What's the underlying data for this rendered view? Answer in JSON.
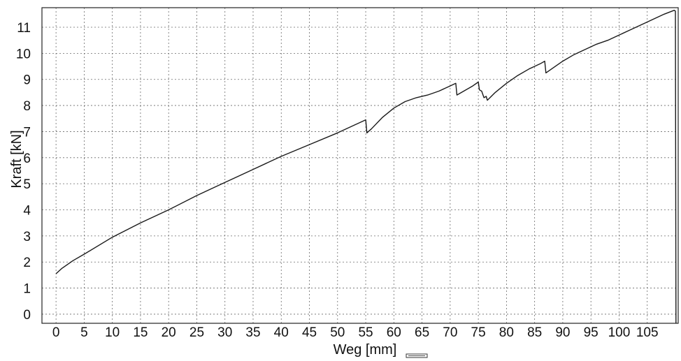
{
  "chart_data": {
    "type": "line",
    "title": "",
    "xlabel": "Weg [mm]",
    "ylabel": "Kraft [kN]",
    "xlim": [
      -2.5,
      110.5
    ],
    "ylim": [
      -0.35,
      11.75
    ],
    "x_ticks": [
      0,
      5,
      10,
      15,
      20,
      25,
      30,
      35,
      40,
      45,
      50,
      55,
      60,
      65,
      70,
      75,
      80,
      85,
      90,
      95,
      100,
      105
    ],
    "y_ticks": [
      0,
      1,
      2,
      3,
      4,
      5,
      6,
      7,
      8,
      9,
      10,
      11
    ],
    "grid": true,
    "legend": "none",
    "series": [
      {
        "x": [
          0,
          1,
          3,
          5,
          10,
          15,
          20,
          25,
          30,
          35,
          40,
          45,
          50,
          55,
          55.2,
          56,
          58,
          60,
          62,
          64,
          66,
          68,
          70,
          71,
          71.2,
          72,
          74,
          75,
          75.2,
          75.6,
          76,
          76.4,
          76.6,
          78,
          80,
          82,
          84,
          86,
          86.8,
          87,
          88,
          90,
          92,
          94,
          96,
          98,
          100,
          102,
          104,
          106,
          108,
          109.8,
          110,
          110.1
        ],
        "y": [
          1.55,
          1.75,
          2.05,
          2.3,
          2.95,
          3.5,
          4.0,
          4.55,
          5.05,
          5.55,
          6.05,
          6.5,
          6.95,
          7.45,
          6.95,
          7.1,
          7.55,
          7.9,
          8.15,
          8.3,
          8.4,
          8.55,
          8.75,
          8.85,
          8.4,
          8.5,
          8.75,
          8.9,
          8.6,
          8.55,
          8.3,
          8.35,
          8.2,
          8.5,
          8.85,
          9.15,
          9.4,
          9.6,
          9.7,
          9.25,
          9.4,
          9.7,
          9.95,
          10.15,
          10.35,
          10.5,
          10.7,
          10.9,
          11.1,
          11.3,
          11.5,
          11.65,
          11.62,
          -0.35
        ]
      }
    ]
  }
}
